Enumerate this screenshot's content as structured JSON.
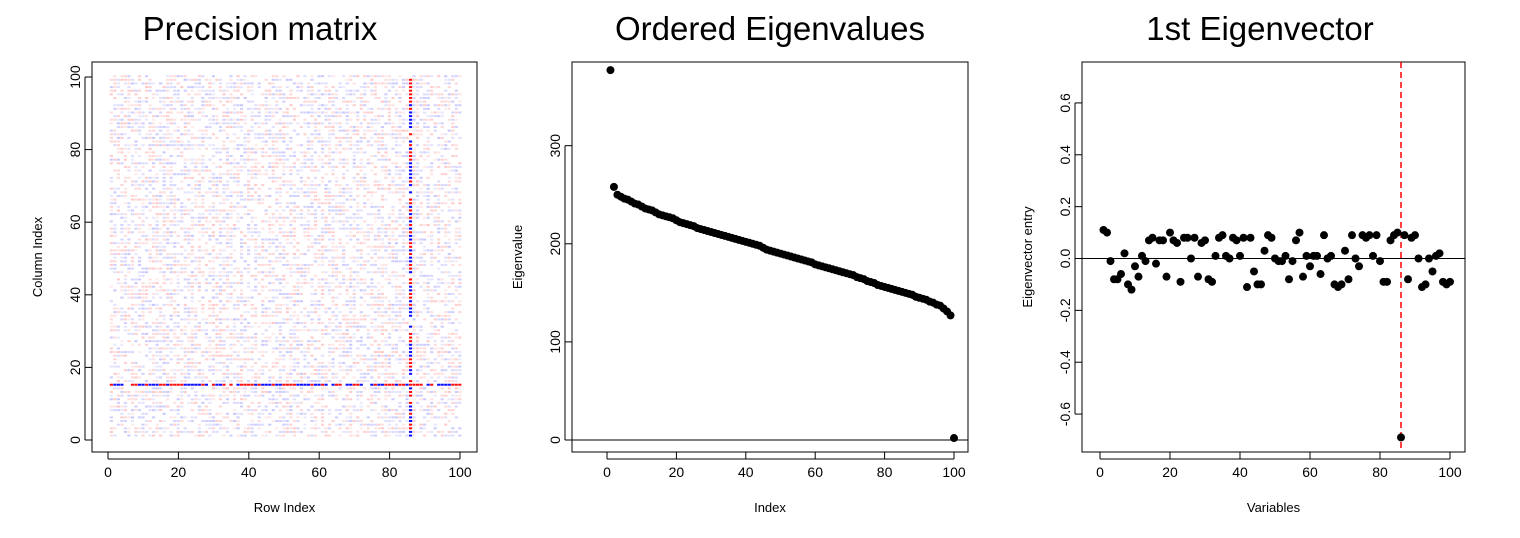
{
  "chart_data": [
    {
      "type": "heatmap",
      "title": "Precision matrix",
      "xlabel": "Row Index",
      "ylabel": "Column Index",
      "xlim": [
        0,
        100
      ],
      "ylim": [
        0,
        100
      ],
      "xticks": [
        0,
        20,
        40,
        60,
        80,
        100
      ],
      "yticks": [
        0,
        20,
        40,
        60,
        80,
        100
      ],
      "matrix_size": 100,
      "background": "faint random red/blue entries",
      "highlight_row": 15,
      "highlight_column": 86,
      "colors": {
        "positive": "#ff0000",
        "negative": "#0000ff"
      }
    },
    {
      "type": "scatter",
      "title": "Ordered Eigenvalues",
      "xlabel": "Index",
      "ylabel": "Eigenvalue",
      "xlim": [
        0,
        100
      ],
      "ylim": [
        0,
        370
      ],
      "xticks": [
        0,
        20,
        40,
        60,
        80,
        100
      ],
      "yticks": [
        0,
        100,
        200,
        300
      ],
      "hline": 0,
      "x": [
        1,
        2,
        3,
        4,
        5,
        6,
        7,
        8,
        9,
        10,
        11,
        12,
        13,
        14,
        15,
        16,
        17,
        18,
        19,
        20,
        21,
        22,
        23,
        24,
        25,
        26,
        27,
        28,
        29,
        30,
        31,
        32,
        33,
        34,
        35,
        36,
        37,
        38,
        39,
        40,
        41,
        42,
        43,
        44,
        45,
        46,
        47,
        48,
        49,
        50,
        51,
        52,
        53,
        54,
        55,
        56,
        57,
        58,
        59,
        60,
        61,
        62,
        63,
        64,
        65,
        66,
        67,
        68,
        69,
        70,
        71,
        72,
        73,
        74,
        75,
        76,
        77,
        78,
        79,
        80,
        81,
        82,
        83,
        84,
        85,
        86,
        87,
        88,
        89,
        90,
        91,
        92,
        93,
        94,
        95,
        96,
        97,
        98,
        99,
        100
      ],
      "y": [
        377,
        258,
        250,
        248,
        246,
        245,
        243,
        241,
        240,
        238,
        236,
        235,
        234,
        232,
        230,
        229,
        228,
        227,
        226,
        224,
        222,
        221,
        220,
        219,
        218,
        216,
        215,
        214,
        213,
        212,
        211,
        210,
        209,
        208,
        207,
        206,
        205,
        204,
        203,
        202,
        201,
        200,
        199,
        198,
        196,
        194,
        193,
        192,
        191,
        190,
        189,
        188,
        187,
        186,
        185,
        184,
        183,
        182,
        181,
        179,
        178,
        177,
        176,
        175,
        174,
        173,
        172,
        171,
        170,
        169,
        168,
        166,
        165,
        164,
        162,
        161,
        160,
        158,
        157,
        156,
        155,
        154,
        153,
        152,
        151,
        150,
        149,
        148,
        146,
        145,
        144,
        143,
        141,
        140,
        138,
        137,
        134,
        131,
        127,
        2
      ]
    },
    {
      "type": "scatter",
      "title": "1st Eigenvector",
      "xlabel": "Variables",
      "ylabel": "Eigenvector entry",
      "xlim": [
        0,
        100
      ],
      "ylim": [
        -0.7,
        0.7
      ],
      "xticks": [
        0,
        20,
        40,
        60,
        80,
        100
      ],
      "yticks": [
        -0.6,
        -0.4,
        -0.2,
        0.0,
        0.2,
        0.4,
        0.6
      ],
      "hline": 0,
      "vline": 86,
      "vline_color": "#ff0000",
      "x": [
        1,
        2,
        3,
        4,
        5,
        6,
        7,
        8,
        9,
        10,
        11,
        12,
        13,
        14,
        15,
        16,
        17,
        18,
        19,
        20,
        21,
        22,
        23,
        24,
        25,
        26,
        27,
        28,
        29,
        30,
        31,
        32,
        33,
        34,
        35,
        36,
        37,
        38,
        39,
        40,
        41,
        42,
        43,
        44,
        45,
        46,
        47,
        48,
        49,
        50,
        51,
        52,
        53,
        54,
        55,
        56,
        57,
        58,
        59,
        60,
        61,
        62,
        63,
        64,
        65,
        66,
        67,
        68,
        69,
        70,
        71,
        72,
        73,
        74,
        75,
        76,
        77,
        78,
        79,
        80,
        81,
        82,
        83,
        84,
        85,
        86,
        87,
        88,
        89,
        90,
        91,
        92,
        93,
        94,
        95,
        96,
        97,
        98,
        99,
        100
      ],
      "y": [
        0.11,
        0.1,
        -0.01,
        -0.08,
        -0.08,
        -0.06,
        0.02,
        -0.1,
        -0.12,
        -0.03,
        -0.07,
        0.01,
        -0.01,
        0.07,
        0.08,
        -0.02,
        0.07,
        0.07,
        -0.07,
        0.1,
        0.07,
        0.06,
        -0.09,
        0.08,
        0.08,
        0.0,
        0.08,
        -0.07,
        0.06,
        0.07,
        -0.08,
        -0.09,
        0.01,
        0.08,
        0.09,
        0.01,
        0.0,
        0.08,
        0.07,
        0.01,
        0.08,
        -0.11,
        0.08,
        -0.05,
        -0.1,
        -0.1,
        0.03,
        0.09,
        0.08,
        0.0,
        -0.01,
        -0.01,
        0.01,
        -0.08,
        -0.01,
        0.07,
        0.1,
        -0.07,
        0.01,
        -0.03,
        0.01,
        0.01,
        -0.06,
        0.09,
        0.0,
        0.01,
        -0.1,
        -0.11,
        -0.1,
        0.03,
        -0.08,
        0.09,
        0.0,
        -0.03,
        0.09,
        0.08,
        0.09,
        0.01,
        0.09,
        -0.01,
        -0.09,
        -0.09,
        0.07,
        0.09,
        0.1,
        -0.69,
        0.09,
        -0.08,
        0.08,
        0.09,
        0.0,
        -0.11,
        -0.1,
        0.0,
        -0.05,
        0.01,
        0.02,
        -0.09,
        -0.1,
        -0.09
      ]
    }
  ]
}
